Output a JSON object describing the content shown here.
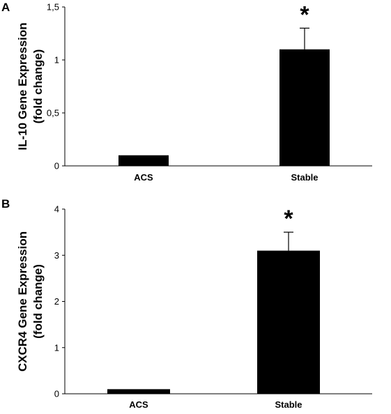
{
  "chart_data": [
    {
      "type": "bar",
      "panel": "A",
      "categories": [
        "ACS",
        "Stable"
      ],
      "values": [
        0.1,
        1.1
      ],
      "error": [
        0,
        0.2
      ],
      "ylabel_lines": [
        "IL-10 Gene Expression",
        "(fold change)"
      ],
      "ylim": [
        0,
        1.5
      ],
      "yticks": [
        0,
        0.5,
        1,
        1.5
      ],
      "ytick_labels": [
        "0",
        "0,5",
        "1",
        "1,5"
      ],
      "annotations": [
        {
          "category": "Stable",
          "text": "*"
        }
      ],
      "bar_color": "#000000"
    },
    {
      "type": "bar",
      "panel": "B",
      "categories": [
        "ACS",
        "Stable"
      ],
      "values": [
        0.1,
        3.1
      ],
      "error": [
        0,
        0.4
      ],
      "ylabel_lines": [
        "CXCR4 Gene Expression",
        "(fold change)"
      ],
      "ylim": [
        0,
        4
      ],
      "yticks": [
        0,
        1,
        2,
        3,
        4
      ],
      "ytick_labels": [
        "0",
        "1",
        "2",
        "3",
        "4"
      ],
      "annotations": [
        {
          "category": "Stable",
          "text": "*"
        }
      ],
      "bar_color": "#000000"
    }
  ]
}
